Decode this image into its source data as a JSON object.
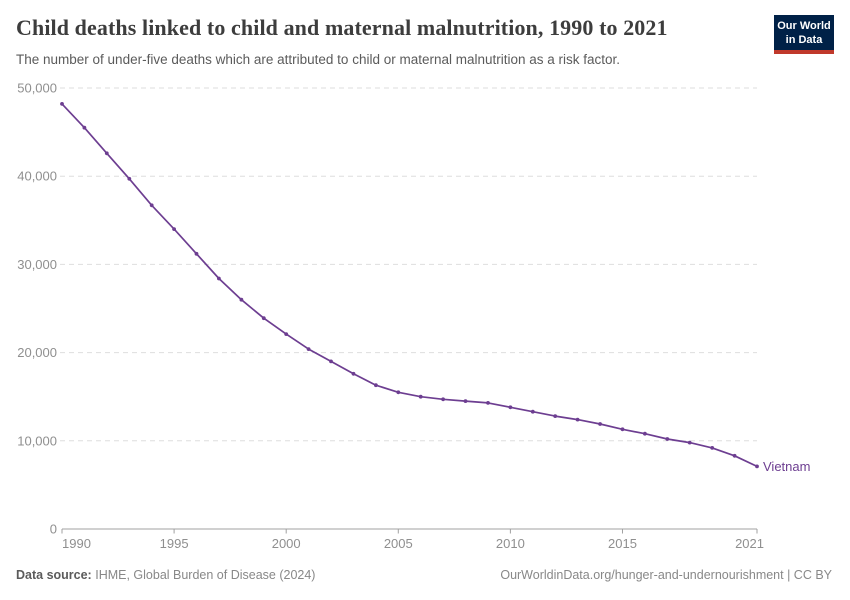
{
  "header": {
    "title": "Child deaths linked to child and maternal malnutrition, 1990 to 2021",
    "subtitle": "The number of under-five deaths which are attributed to child or maternal malnutrition as a risk factor."
  },
  "logo": {
    "line1": "Our World",
    "line2": "in Data",
    "bg_color": "#002147",
    "accent_color": "#c0392b"
  },
  "chart_data": {
    "type": "line",
    "title": "Child deaths linked to child and maternal malnutrition, 1990 to 2021",
    "x": [
      1990,
      1991,
      1992,
      1993,
      1994,
      1995,
      1996,
      1997,
      1998,
      1999,
      2000,
      2001,
      2002,
      2003,
      2004,
      2005,
      2006,
      2007,
      2008,
      2009,
      2010,
      2011,
      2012,
      2013,
      2014,
      2015,
      2016,
      2017,
      2018,
      2019,
      2020,
      2021
    ],
    "series": [
      {
        "name": "Vietnam",
        "color": "#6d3e91",
        "values": [
          48200,
          45500,
          42600,
          39700,
          36700,
          34000,
          31200,
          28400,
          26000,
          23900,
          22100,
          20400,
          19000,
          17600,
          16300,
          15500,
          15000,
          14700,
          14500,
          14300,
          13800,
          13300,
          12800,
          12400,
          11900,
          11300,
          10800,
          10200,
          9800,
          9200,
          8300,
          7100
        ]
      }
    ],
    "xlabel": "",
    "ylabel": "",
    "xlim": [
      1990,
      2021
    ],
    "ylim": [
      0,
      50000
    ],
    "xticks": [
      1990,
      1995,
      2000,
      2005,
      2010,
      2015,
      2021
    ],
    "yticks": [
      0,
      10000,
      20000,
      30000,
      40000,
      50000
    ],
    "grid": "horizontal-dashed",
    "legend_position": "end-of-line-label",
    "end_label": "Vietnam"
  },
  "colors": {
    "line": "#6d3e91",
    "grid": "#dedede",
    "axis_line": "#a0a0a0",
    "axis_text": "#8f8f8f",
    "title_text": "#3d3d3d",
    "subtitle_text": "#5b5b5b",
    "footer_text": "#888888"
  },
  "footer": {
    "source_label": "Data source:",
    "source_text": "IHME, Global Burden of Disease (2024)",
    "attribution": "OurWorldinData.org/hunger-and-undernourishment | CC BY"
  }
}
